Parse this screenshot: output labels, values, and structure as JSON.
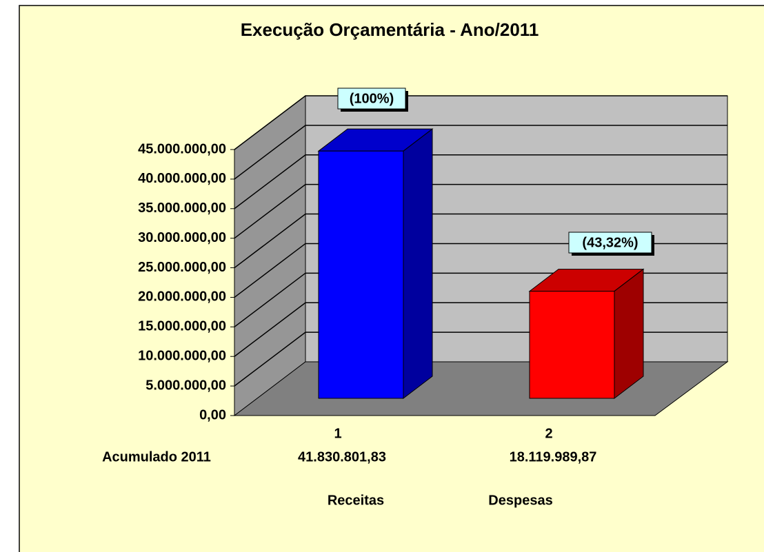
{
  "chart_data": {
    "type": "bar3d",
    "title": "Execução Orçamentária - Ano/2011",
    "categories": [
      "1",
      "2"
    ],
    "category_labels": [
      "Receitas",
      "Despesas"
    ],
    "series": [
      {
        "name": "Acumulado 2011",
        "colors": [
          "#0000ff",
          "#ff0000"
        ],
        "values": [
          41830801.83,
          18119989.87
        ],
        "value_labels": [
          "41.830.801,83",
          "18.119.989,87"
        ]
      }
    ],
    "annotations": [
      "(100%)",
      "(43,32%)"
    ],
    "ylim": [
      0,
      45000000
    ],
    "yticks": [
      {
        "value": 0,
        "label": "0,00"
      },
      {
        "value": 5000000,
        "label": "5.000.000,00"
      },
      {
        "value": 10000000,
        "label": "10.000.000,00"
      },
      {
        "value": 15000000,
        "label": "15.000.000,00"
      },
      {
        "value": 20000000,
        "label": "20.000.000,00"
      },
      {
        "value": 25000000,
        "label": "25.000.000,00"
      },
      {
        "value": 30000000,
        "label": "30.000.000,00"
      },
      {
        "value": 35000000,
        "label": "35.000.000,00"
      },
      {
        "value": 40000000,
        "label": "40.000.000,00"
      },
      {
        "value": 45000000,
        "label": "45.000.000,00"
      }
    ],
    "grid": true
  }
}
